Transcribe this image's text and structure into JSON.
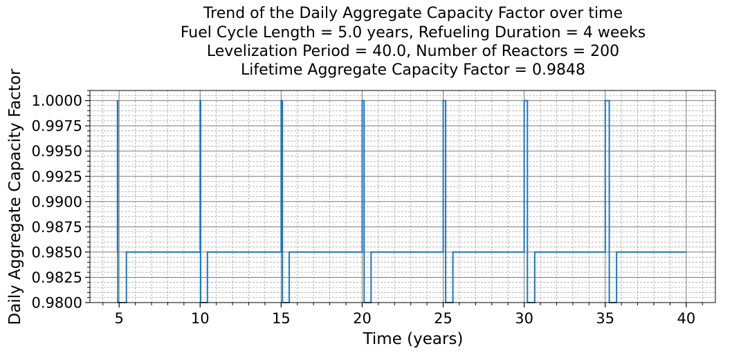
{
  "chart_data": {
    "type": "line",
    "title_lines": [
      "Trend of the Daily Aggregate Capacity Factor over time",
      "Fuel Cycle Length = 5.0 years, Refueling Duration = 4 weeks",
      "Levelization Period = 40.0, Number of Reactors = 200",
      "Lifetime Aggregate Capacity Factor = 0.9848"
    ],
    "xlabel": "Time (years)",
    "ylabel": "Daily Aggregate Capacity Factor",
    "xlim": [
      3.2,
      41.8
    ],
    "ylim": [
      0.98,
      1.001
    ],
    "xticks": [
      5,
      10,
      15,
      20,
      25,
      30,
      35,
      40
    ],
    "xtick_labels": [
      "5",
      "10",
      "15",
      "20",
      "25",
      "30",
      "35",
      "40"
    ],
    "yticks": [
      0.98,
      0.9825,
      0.985,
      0.9875,
      0.99,
      0.9925,
      0.995,
      0.9975,
      1.0
    ],
    "ytick_labels": [
      "0.9800",
      "0.9825",
      "0.9850",
      "0.9875",
      "0.9900",
      "0.9925",
      "0.9950",
      "0.9975",
      "1.0000"
    ],
    "grid": true,
    "minor_grid": true,
    "line_color": "#1f77b4",
    "series": [
      {
        "x": [
          4.9,
          4.9,
          4.92,
          4.92,
          5.45,
          5.45,
          10.0,
          10.0,
          10.03,
          10.03,
          10.45,
          10.45,
          15.0,
          15.0,
          15.08,
          15.08,
          15.5,
          15.5,
          20.0,
          20.0,
          20.12,
          20.12,
          20.55,
          20.55,
          25.0,
          25.0,
          25.15,
          25.15,
          25.6,
          25.6,
          30.0,
          30.0,
          30.2,
          30.2,
          30.65,
          30.65,
          35.0,
          35.0,
          35.25,
          35.25,
          35.7,
          35.7,
          40.0
        ],
        "y": [
          0.985,
          1.0,
          1.0,
          0.98,
          0.98,
          0.985,
          0.985,
          1.0,
          1.0,
          0.98,
          0.98,
          0.985,
          0.985,
          1.0,
          1.0,
          0.98,
          0.98,
          0.985,
          0.985,
          1.0,
          1.0,
          0.98,
          0.98,
          0.985,
          0.985,
          1.0,
          1.0,
          0.98,
          0.98,
          0.985,
          0.985,
          1.0,
          1.0,
          0.98,
          0.98,
          0.985,
          0.985,
          1.0,
          1.0,
          0.98,
          0.98,
          0.985,
          0.985
        ]
      }
    ]
  }
}
